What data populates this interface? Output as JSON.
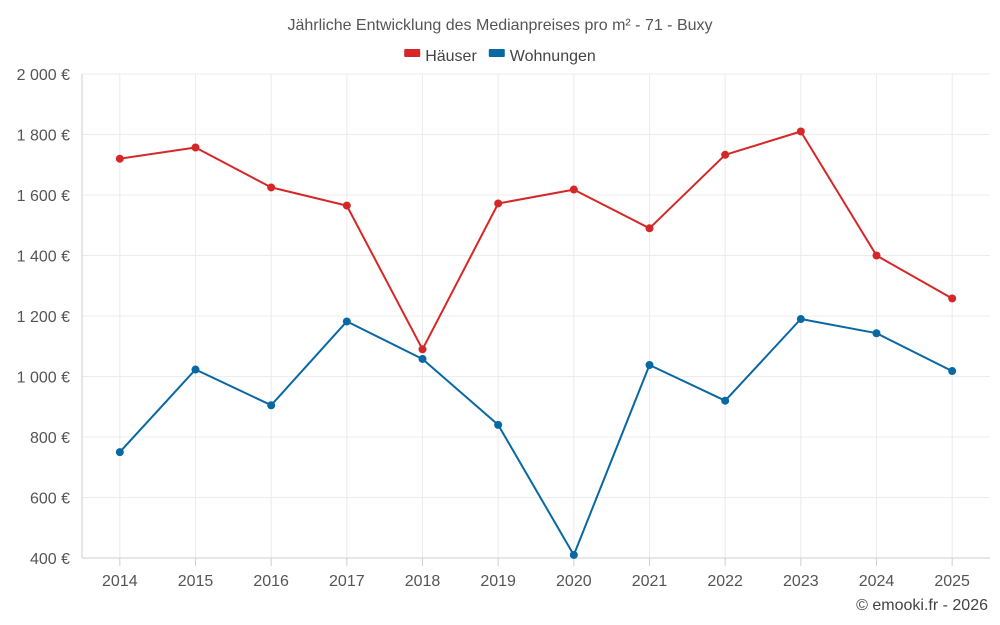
{
  "chart_data": {
    "type": "line",
    "title": "Jährliche Entwicklung des Medianpreises pro m² - 71 - Buxy",
    "categories": [
      "2014",
      "2015",
      "2016",
      "2017",
      "2018",
      "2019",
      "2020",
      "2021",
      "2022",
      "2023",
      "2024",
      "2025"
    ],
    "series": [
      {
        "name": "Häuser",
        "color": "#d62728",
        "values": [
          1720,
          1757,
          1625,
          1565,
          1090,
          1572,
          1618,
          1490,
          1733,
          1810,
          1400,
          1258
        ]
      },
      {
        "name": "Wohnungen",
        "color": "#0868a3",
        "values": [
          750,
          1023,
          905,
          1182,
          1058,
          840,
          410,
          1038,
          920,
          1190,
          1143,
          1018
        ]
      }
    ],
    "yticks": [
      400,
      600,
      800,
      1000,
      1200,
      1400,
      1600,
      1800,
      2000
    ],
    "ytick_labels": [
      "400 €",
      "600 €",
      "800 €",
      "1 000 €",
      "1 200 €",
      "1 400 €",
      "1 600 €",
      "1 800 €",
      "2 000 €"
    ],
    "ylim": [
      400,
      2000
    ],
    "xlabel": "",
    "ylabel": "",
    "grid": true,
    "legend_position": "top-center",
    "credit": "© emooki.fr - 2026"
  }
}
